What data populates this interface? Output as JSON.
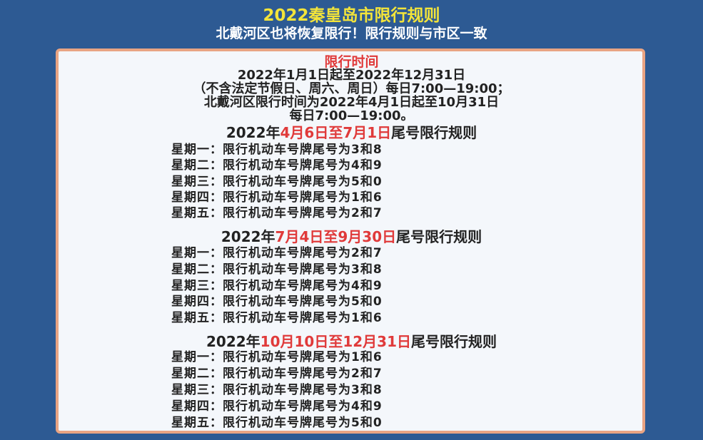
{
  "header": {
    "title": "2022秦皇岛市限行规则",
    "subtitle": "北戴河区也将恢复限行！限行规则与市区一致"
  },
  "time": {
    "heading": "限行时间",
    "line1": "2022年1月1日起至2022年12月31日",
    "line2": "（不含法定节假日、周六、周日）每日7:00—19:00；",
    "line3": "北戴河区限行时间为2022年4月1日起至10月31日",
    "line4": "每日7:00—19:00。"
  },
  "sections": [
    {
      "prefix": "2022年",
      "range": "4月6日至7月1日",
      "suffix": "尾号限行规则",
      "rows": [
        "星期一：限行机动车号牌尾号为3和8",
        "星期二：限行机动车号牌尾号为4和9",
        "星期三：限行机动车号牌尾号为5和0",
        "星期四：限行机动车号牌尾号为1和6",
        "星期五：限行机动车号牌尾号为2和7"
      ]
    },
    {
      "prefix": "2022年",
      "range": "7月4日至9月30日",
      "suffix": "尾号限行规则",
      "rows": [
        "星期一：限行机动车号牌尾号为2和7",
        "星期二：限行机动车号牌尾号为3和8",
        "星期三：限行机动车号牌尾号为4和9",
        "星期四：限行机动车号牌尾号为5和0",
        "星期五：限行机动车号牌尾号为1和6"
      ]
    },
    {
      "prefix": "2022年",
      "range": "10月10日至12月31日",
      "suffix": "尾号限行规则",
      "rows": [
        "星期一：限行机动车号牌尾号为1和6",
        "星期二：限行机动车号牌尾号为2和7",
        "星期三：限行机动车号牌尾号为3和8",
        "星期四：限行机动车号牌尾号为4和9",
        "星期五：限行机动车号牌尾号为5和0"
      ]
    }
  ],
  "colors": {
    "background": "#2d5a93",
    "title": "#f3e43a",
    "accent_red": "#e03a3a",
    "card_border": "#e9a483"
  }
}
